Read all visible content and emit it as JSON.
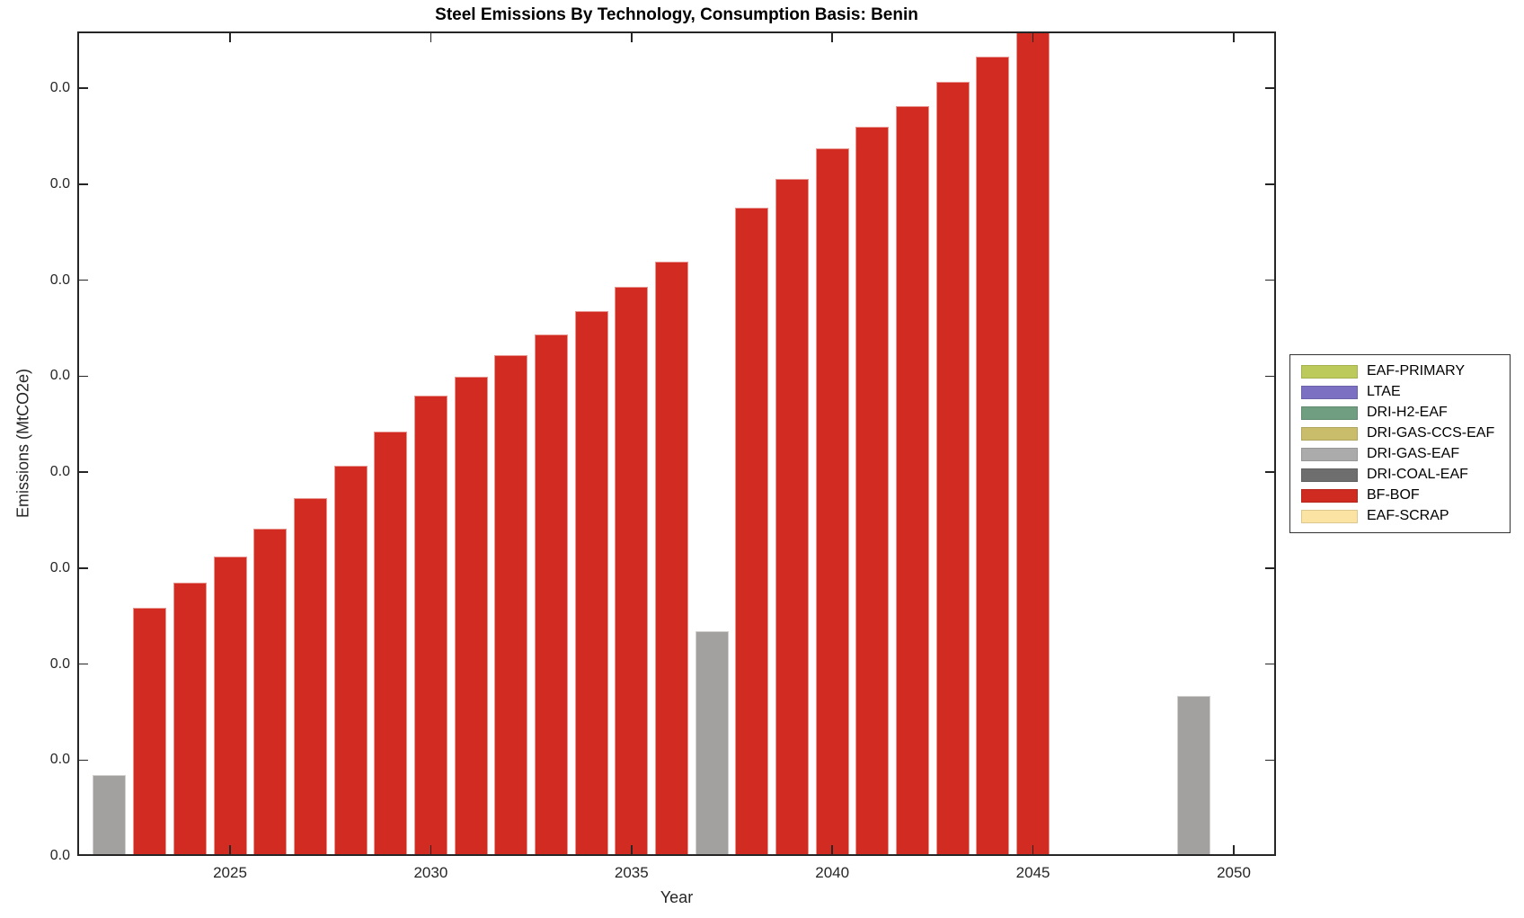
{
  "title": "Steel Emissions By Technology, Consumption Basis: Benin",
  "axes": {
    "x": {
      "label": "Year",
      "tick_labels": [
        "2025",
        "2030",
        "2035",
        "2040",
        "2045",
        "2050"
      ]
    },
    "y": {
      "label": "Emissions (MtCO2e)",
      "tick_label": "0.0",
      "num_ticks": 9
    }
  },
  "legend": {
    "entries": [
      {
        "label": "EAF-PRIMARY",
        "color": "#BCCA5B"
      },
      {
        "label": "LTAE",
        "color": "#7B70C2"
      },
      {
        "label": "DRI-H2-EAF",
        "color": "#6F9E81"
      },
      {
        "label": "DRI-GAS-CCS-EAF",
        "color": "#C9BC6B"
      },
      {
        "label": "DRI-GAS-EAF",
        "color": "#ABABAB"
      },
      {
        "label": "DRI-COAL-EAF",
        "color": "#6E6E6E"
      },
      {
        "label": "BF-BOF",
        "color": "#CF2B20"
      },
      {
        "label": "EAF-SCRAP",
        "color": "#FAE3A3"
      }
    ]
  },
  "chart_data": {
    "type": "bar",
    "title": "Steel Emissions By Technology, Consumption Basis: Benin",
    "xlabel": "Year",
    "ylabel": "Emissions (MtCO2e)",
    "x_ticks": [
      2025,
      2030,
      2035,
      2040,
      2045,
      2050
    ],
    "xlim": [
      2021.2,
      2051.1
    ],
    "grid": false,
    "legend_position": "right-outside",
    "y_axis_note": "9 evenly spaced ticks all labeled 0.0 (values below label precision); bar values given in units of one y-tick interval",
    "ylim_tick_units": [
      0,
      8.59
    ],
    "bar_colors": {
      "BF-BOF": "#D22B21",
      "DRI-GAS-EAF": "#A3A19F"
    },
    "bars": [
      {
        "year": 2022,
        "technology": "DRI-GAS-EAF",
        "value_tick_units": 0.84
      },
      {
        "year": 2023,
        "technology": "BF-BOF",
        "value_tick_units": 2.59
      },
      {
        "year": 2024,
        "technology": "BF-BOF",
        "value_tick_units": 2.85
      },
      {
        "year": 2025,
        "technology": "BF-BOF",
        "value_tick_units": 3.12
      },
      {
        "year": 2026,
        "technology": "BF-BOF",
        "value_tick_units": 3.41
      },
      {
        "year": 2027,
        "technology": "BF-BOF",
        "value_tick_units": 3.73
      },
      {
        "year": 2028,
        "technology": "BF-BOF",
        "value_tick_units": 4.07
      },
      {
        "year": 2029,
        "technology": "BF-BOF",
        "value_tick_units": 4.42
      },
      {
        "year": 2030,
        "technology": "BF-BOF",
        "value_tick_units": 4.8
      },
      {
        "year": 2031,
        "technology": "BF-BOF",
        "value_tick_units": 4.99
      },
      {
        "year": 2032,
        "technology": "BF-BOF",
        "value_tick_units": 5.22
      },
      {
        "year": 2033,
        "technology": "BF-BOF",
        "value_tick_units": 5.43
      },
      {
        "year": 2034,
        "technology": "BF-BOF",
        "value_tick_units": 5.68
      },
      {
        "year": 2035,
        "technology": "BF-BOF",
        "value_tick_units": 5.93
      },
      {
        "year": 2036,
        "technology": "BF-BOF",
        "value_tick_units": 6.19
      },
      {
        "year": 2037,
        "technology": "DRI-GAS-EAF",
        "value_tick_units": 2.34
      },
      {
        "year": 2038,
        "technology": "BF-BOF",
        "value_tick_units": 6.75
      },
      {
        "year": 2039,
        "technology": "BF-BOF",
        "value_tick_units": 7.05
      },
      {
        "year": 2040,
        "technology": "BF-BOF",
        "value_tick_units": 7.37
      },
      {
        "year": 2041,
        "technology": "BF-BOF",
        "value_tick_units": 7.6
      },
      {
        "year": 2042,
        "technology": "BF-BOF",
        "value_tick_units": 7.81
      },
      {
        "year": 2043,
        "technology": "BF-BOF",
        "value_tick_units": 8.07
      },
      {
        "year": 2044,
        "technology": "BF-BOF",
        "value_tick_units": 8.33
      },
      {
        "year": 2045,
        "technology": "BF-BOF",
        "value_tick_units": 8.75,
        "clipped_at_top": true
      },
      {
        "year": 2049,
        "technology": "DRI-GAS-EAF",
        "value_tick_units": 1.67
      }
    ]
  }
}
